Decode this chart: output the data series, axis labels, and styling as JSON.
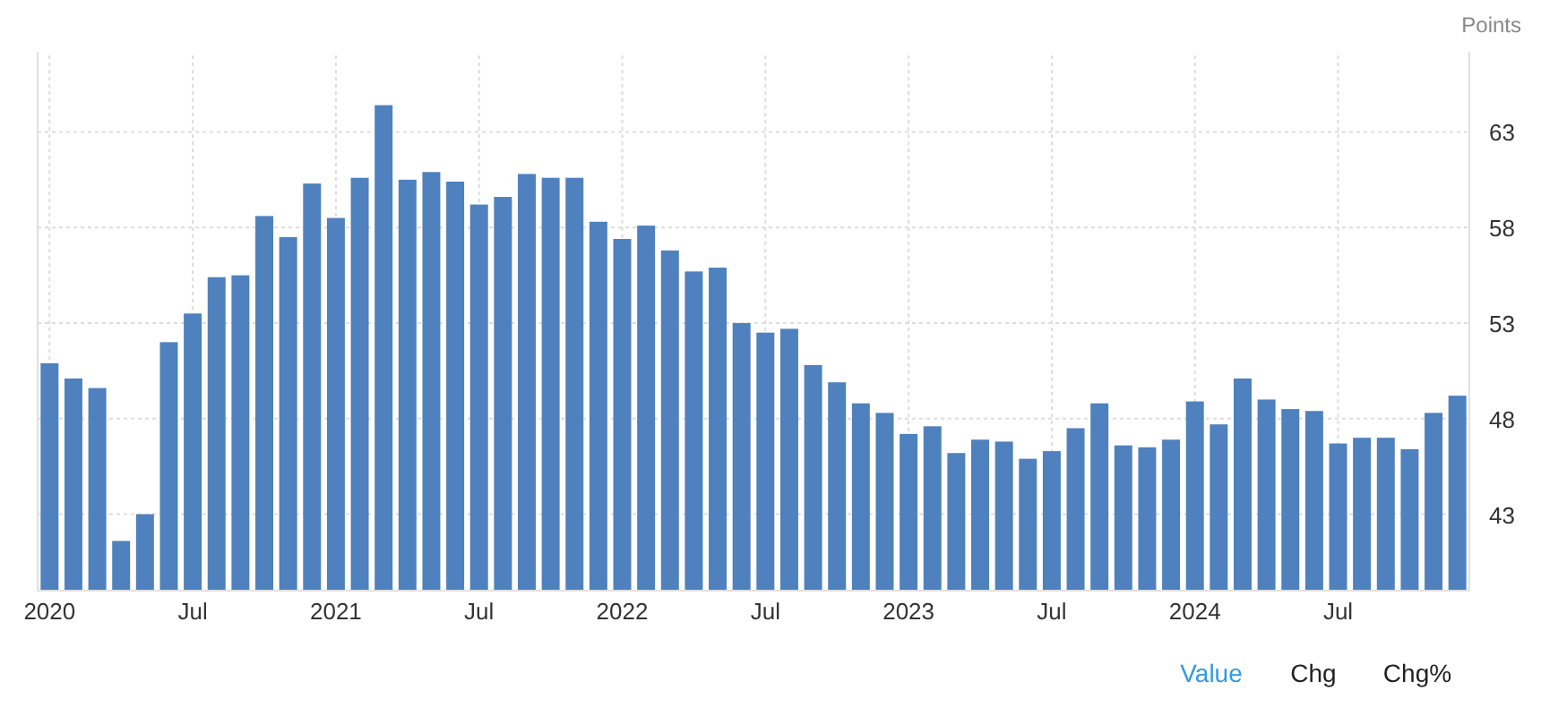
{
  "chart_data": {
    "type": "bar",
    "ylabel": "Points",
    "categories": [
      "2020",
      null,
      null,
      null,
      null,
      null,
      "Jul",
      null,
      null,
      null,
      null,
      null,
      "2021",
      null,
      null,
      null,
      null,
      null,
      "Jul",
      null,
      null,
      null,
      null,
      null,
      "2022",
      null,
      null,
      null,
      null,
      null,
      "Jul",
      null,
      null,
      null,
      null,
      null,
      "2023",
      null,
      null,
      null,
      null,
      null,
      "Jul",
      null,
      null,
      null,
      null,
      null,
      "2024",
      null,
      null,
      null,
      null,
      null,
      "Jul",
      null,
      null,
      null,
      null,
      null
    ],
    "values": [
      50.9,
      50.1,
      49.6,
      41.6,
      43.0,
      52.0,
      53.5,
      55.4,
      55.5,
      58.6,
      57.5,
      60.3,
      58.5,
      60.6,
      64.4,
      60.5,
      60.9,
      60.4,
      59.2,
      59.6,
      60.8,
      60.6,
      60.6,
      58.3,
      57.4,
      58.1,
      56.8,
      55.7,
      55.9,
      53.0,
      52.5,
      52.7,
      50.8,
      49.9,
      48.8,
      48.3,
      47.2,
      47.6,
      46.2,
      46.9,
      46.8,
      45.9,
      46.3,
      47.5,
      48.8,
      46.6,
      46.5,
      46.9,
      48.9,
      47.7,
      50.1,
      49.0,
      48.5,
      48.4,
      46.7,
      47.0,
      47.0,
      46.4,
      48.3,
      49.2
    ],
    "color": "#4e81bd",
    "ylim": [
      39,
      67
    ],
    "yticks": [
      43,
      48,
      53,
      58,
      63
    ],
    "grid": true,
    "annotations": [
      "Value",
      "Chg",
      "Chg%"
    ]
  }
}
